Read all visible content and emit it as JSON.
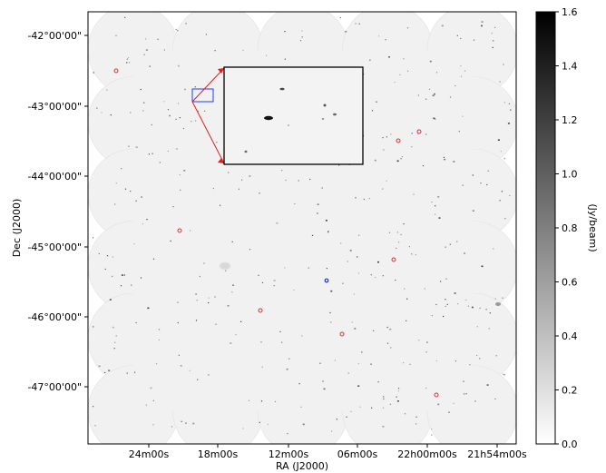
{
  "chart_data": {
    "type": "heatmap",
    "title": "",
    "xlabel": "RA (J2000)",
    "ylabel": "Dec (J2000)",
    "x_ticks": [
      "24m00s",
      "18m00s",
      "12m00s",
      "06m00s",
      "22h00m00s",
      "21h54m00s"
    ],
    "y_ticks": [
      "-42°00'00\"",
      "-43°00'00\"",
      "-44°00'00\"",
      "-45°00'00\"",
      "-46°00'00\"",
      "-47°00'00\""
    ],
    "colorbar": {
      "label": "(Jy/beam)",
      "range": [
        0.0,
        1.6
      ],
      "ticks": [
        "0.0",
        "0.2",
        "0.4",
        "0.6",
        "0.8",
        "1.0",
        "1.2",
        "1.4",
        "1.6"
      ],
      "colormap": "greys"
    },
    "mosaic": {
      "rows": 6,
      "columns": 5,
      "tile_color": "#f1f1f1"
    },
    "inset": {
      "box_color": "#1f3bff",
      "arrow_color": "#e02020",
      "frame_color": "#000000"
    },
    "markers": {
      "red_circles": 9,
      "blue_circles": 1,
      "red_color": "#e03030",
      "blue_color": "#2030e0"
    }
  }
}
